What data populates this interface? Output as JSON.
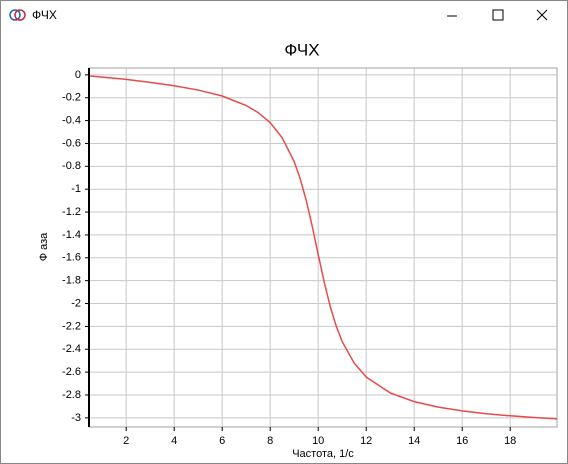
{
  "window": {
    "title": "ФЧХ"
  },
  "chart_data": {
    "type": "line",
    "title": "ФЧХ",
    "x_label": "Частота, 1/с",
    "y_label": "Ф аза",
    "x": [
      0.5,
      1,
      2,
      3,
      4,
      5,
      6,
      7,
      7.5,
      8,
      8.5,
      9,
      9.25,
      9.5,
      9.75,
      10,
      10.25,
      10.5,
      10.75,
      11,
      11.5,
      12,
      13,
      14,
      15,
      16,
      17,
      18,
      19,
      19.95
    ],
    "series": [
      {
        "color": "#e84a4a",
        "values": [
          -0.01,
          -0.02,
          -0.04,
          -0.066,
          -0.095,
          -0.133,
          -0.185,
          -0.268,
          -0.33,
          -0.418,
          -0.55,
          -0.759,
          -0.908,
          -1.097,
          -1.323,
          -1.571,
          -1.813,
          -2.025,
          -2.197,
          -2.333,
          -2.521,
          -2.643,
          -2.782,
          -2.858,
          -2.906,
          -2.939,
          -2.964,
          -2.982,
          -2.997,
          -3.009
        ]
      }
    ],
    "xlim": [
      0.45,
      19.95
    ],
    "ylim": [
      -3.08,
      0.06
    ],
    "xticks": [
      2,
      4,
      6,
      8,
      10,
      12,
      14,
      16,
      18
    ],
    "yticks": [
      0,
      -0.2,
      -0.4,
      -0.6,
      -0.8,
      -1,
      -1.2,
      -1.4,
      -1.6,
      -1.8,
      -2,
      -2.2,
      -2.4,
      -2.6,
      -2.8,
      -3
    ],
    "grid": true
  }
}
